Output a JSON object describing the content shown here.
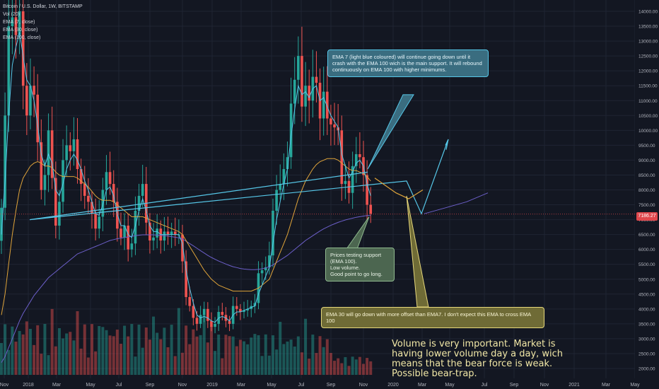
{
  "legend": {
    "title": "Bitcoin / U.S. Dollar, 1W, BITSTAMP",
    "vol": "Vol (20)",
    "ema7": "EMA (7, close)",
    "ema30": "EMA (30, close)",
    "ema100": "EMA (100, close)"
  },
  "annotations": {
    "blue": "EMA 7 (light blue coloured) will continue going down until it crash with the EMA 100 wich is the main support. It will rebound continuously on EMA 100 with higher minimums.",
    "green": "Prices testing support (EMA 100).\nLow volume.\nGood point to go long.",
    "yellow": "EMA 30 will go down with more offset than EMA7. I don't expect this EMA to cross EMA 100",
    "note": "Volume is very important. Market is having lower volume day a day, wich means that the bear force is weak. Possible bear-trap."
  },
  "current_price": "7186.27",
  "colors": {
    "up": "#26a69a",
    "down": "#ef5350",
    "ema7": "#56c7e8",
    "ema30": "#e0a43a",
    "ema100": "#6c5fc9",
    "bg": "#131722"
  },
  "chart_data": {
    "type": "candlestick",
    "ylim": [
      2000,
      14000
    ],
    "y_ticks": [
      "14000.00",
      "13500.00",
      "13000.00",
      "12500.00",
      "12000.00",
      "11500.00",
      "11000.00",
      "10500.00",
      "10000.00",
      "9500.00",
      "9000.00",
      "8500.00",
      "8000.00",
      "7500.00",
      "7000.00",
      "6500.00",
      "6000.00",
      "5500.00",
      "5000.00",
      "4500.00",
      "4000.00",
      "3500.00",
      "3000.00",
      "2500.00",
      "2000.00"
    ],
    "x_ticks": [
      "Nov",
      "2018",
      "Mar",
      "May",
      "Jul",
      "Sep",
      "Nov",
      "2019",
      "Mar",
      "May",
      "Jul",
      "Sep",
      "Nov",
      "2020",
      "Mar",
      "May",
      "Jul",
      "Sep",
      "Nov",
      "2021",
      "Mar",
      "May"
    ],
    "closes": [
      7400,
      10500,
      13500,
      13800,
      13200,
      14000,
      11500,
      10500,
      11500,
      11200,
      9600,
      8000,
      8500,
      10000,
      8400,
      6800,
      7600,
      9000,
      9500,
      9300,
      9700,
      8700,
      8200,
      7800,
      7600,
      7200,
      6700,
      7100,
      8000,
      8600,
      8200,
      7600,
      6700,
      6400,
      6800,
      6000,
      6200,
      7300,
      7800,
      8200,
      6900,
      6300,
      6400,
      6700,
      6300,
      6600,
      6500,
      6600,
      6500,
      6500,
      5600,
      4400,
      4100,
      3700,
      3500,
      3800,
      4000,
      3600,
      3400,
      3500,
      3900,
      3800,
      3600,
      3500,
      4100,
      4000,
      3900,
      3950,
      4000,
      4100,
      4200,
      5200,
      5300,
      5400,
      5800,
      7300,
      8000,
      8200,
      8700,
      9100,
      10900,
      11700,
      12500,
      10800,
      11500,
      11000,
      11800,
      11600,
      10400,
      11300,
      10400,
      10200,
      10100,
      10000,
      8200,
      8300,
      7900,
      8800,
      9200,
      9100,
      8500,
      7500,
      7200
    ],
    "ema7": [
      6500,
      8300,
      10500,
      12200,
      12800,
      13300,
      12500,
      11700,
      11500,
      11000,
      10200,
      9200,
      8800,
      9200,
      8900,
      8000,
      7800,
      8200,
      8700,
      9000,
      9200,
      9000,
      8700,
      8300,
      8000,
      7600,
      7200,
      7150,
      7500,
      8000,
      8100,
      7800,
      7200,
      6800,
      6800,
      6500,
      6400,
      6800,
      7300,
      7700,
      7300,
      6800,
      6600,
      6600,
      6500,
      6500,
      6500,
      6500,
      6500,
      6500,
      6200,
      5300,
      4700,
      4200,
      3800,
      3700,
      3750,
      3700,
      3600,
      3550,
      3700,
      3750,
      3700,
      3600,
      3800,
      3900,
      3900,
      3950,
      4000,
      4050,
      4100,
      4500,
      4800,
      5100,
      5400,
      6200,
      7000,
      7600,
      8200,
      8700,
      9800,
      10700,
      11500,
      11200,
      11300,
      11100,
      11400,
      11500,
      11000,
      11100,
      10800,
      10500,
      10300,
      10100,
      9200,
      8800,
      8400,
      8600,
      8900,
      9000,
      8800,
      8200,
      7800
    ],
    "ema30": [
      3800,
      4500,
      5500,
      6500,
      7300,
      8000,
      8400,
      8600,
      8800,
      8900,
      8950,
      8900,
      8800,
      8800,
      8750,
      8600,
      8500,
      8450,
      8450,
      8450,
      8450,
      8400,
      8300,
      8200,
      8100,
      7950,
      7800,
      7700,
      7650,
      7650,
      7650,
      7600,
      7500,
      7400,
      7300,
      7200,
      7100,
      7100,
      7100,
      7100,
      7050,
      7000,
      6950,
      6900,
      6850,
      6800,
      6750,
      6700,
      6650,
      6600,
      6500,
      6300,
      6100,
      5900,
      5700,
      5500,
      5300,
      5150,
      5000,
      4900,
      4800,
      4750,
      4700,
      4650,
      4600,
      4600,
      4600,
      4600,
      4600,
      4600,
      4650,
      4700,
      4800,
      4900,
      5000,
      5300,
      5600,
      5900,
      6200,
      6500,
      6900,
      7300,
      7700,
      8000,
      8300,
      8500,
      8700,
      8850,
      8950,
      9000,
      9050,
      9050,
      9050,
      9000,
      8900,
      8800,
      8700,
      8650,
      8650,
      8600,
      8550,
      8450,
      8300
    ],
    "ema100": [
      2200,
      2400,
      2700,
      3000,
      3300,
      3600,
      3850,
      4050,
      4250,
      4450,
      4600,
      4750,
      4900,
      5050,
      5150,
      5250,
      5350,
      5450,
      5550,
      5650,
      5750,
      5850,
      5900,
      5950,
      6000,
      6050,
      6100,
      6150,
      6200,
      6250,
      6300,
      6330,
      6360,
      6380,
      6400,
      6420,
      6440,
      6460,
      6480,
      6490,
      6490,
      6490,
      6490,
      6480,
      6470,
      6460,
      6450,
      6430,
      6410,
      6390,
      6350,
      6280,
      6200,
      6120,
      6040,
      5960,
      5880,
      5800,
      5730,
      5670,
      5610,
      5560,
      5510,
      5460,
      5420,
      5390,
      5360,
      5340,
      5330,
      5320,
      5320,
      5330,
      5350,
      5380,
      5420,
      5480,
      5560,
      5640,
      5720,
      5800,
      5900,
      6000,
      6100,
      6200,
      6300,
      6380,
      6460,
      6540,
      6620,
      6690,
      6750,
      6810,
      6860,
      6910,
      6950,
      6990,
      7020,
      7050,
      7080,
      7100,
      7120,
      7140,
      7150
    ],
    "forecast": [
      7000,
      8300,
      7200,
      9700
    ],
    "ema30_forecast": [
      8400,
      7900,
      7700,
      8000
    ],
    "ema100_forecast": [
      7200,
      7400,
      7600,
      7900
    ]
  }
}
